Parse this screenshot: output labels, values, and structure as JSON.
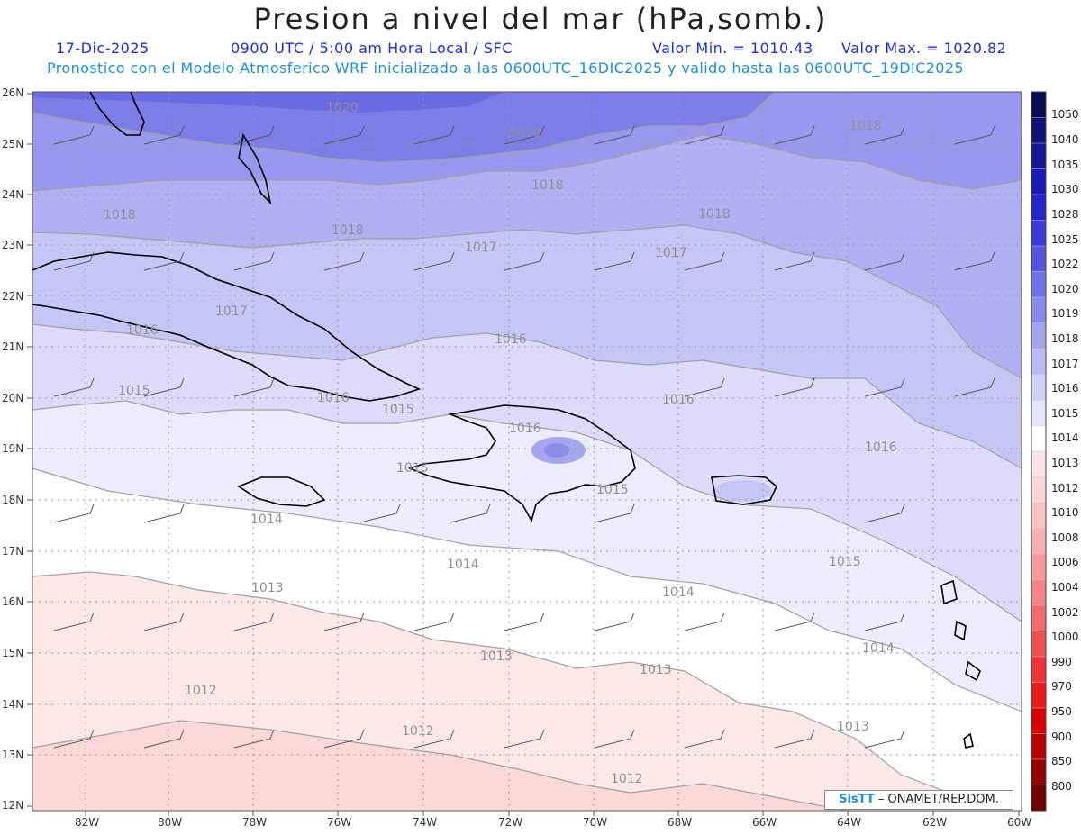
{
  "title": "Presion a nivel del mar (hPa,somb.)",
  "header": {
    "date": "17-Dic-2025",
    "time": "0900 UTC / 5:00 am Hora Local / SFC",
    "min": "Valor Min. = 1010.43",
    "max": "Valor Max. = 1020.82",
    "model": "Pronostico con el Modelo Atmosferico WRF inicializado a las 0600UTC_16DIC2025 y valido hasta las  0600UTC_19DIC2025"
  },
  "lat_labels": [
    "26N",
    "25N",
    "24N",
    "23N",
    "22N",
    "21N",
    "20N",
    "19N",
    "18N",
    "17N",
    "16N",
    "15N",
    "14N",
    "13N",
    "12N"
  ],
  "lon_labels": [
    "82W",
    "80W",
    "78W",
    "76W",
    "74W",
    "72W",
    "70W",
    "68W",
    "66W",
    "64W",
    "62W",
    "60W"
  ],
  "legend": [
    "1050",
    "1040",
    "1035",
    "1030",
    "1028",
    "1025",
    "1022",
    "1020",
    "1019",
    "1018",
    "1017",
    "1016",
    "1015",
    "1014",
    "1013",
    "1012",
    "1010",
    "1008",
    "1006",
    "1004",
    "1002",
    "1000",
    "990",
    "970",
    "950",
    "900",
    "850",
    "800"
  ],
  "legend_colors": [
    "#0a0a55",
    "#101075",
    "#151595",
    "#1a1ab5",
    "#2525cc",
    "#3a3ad8",
    "#5555e0",
    "#6f6fe6",
    "#8a8aec",
    "#a3a3f0",
    "#babaf4",
    "#d0d0f8",
    "#e4e4fb",
    "#ffffff",
    "#fde5e5",
    "#fcd6d6",
    "#fbc4c4",
    "#f9b0b0",
    "#f79a9a",
    "#f58484",
    "#f36c6c",
    "#f05050",
    "#ee3535",
    "#ea1a1a",
    "#d80000",
    "#b80000",
    "#950000",
    "#700000"
  ],
  "contour_labels": [
    "1020",
    "1019",
    "1018",
    "1018",
    "1018",
    "1018",
    "1018",
    "1017",
    "1017",
    "1017",
    "1016",
    "1016",
    "1016",
    "1016",
    "1016",
    "1016",
    "1015",
    "1015",
    "1015",
    "1015",
    "1015",
    "1014",
    "1014",
    "1014",
    "1014",
    "1013",
    "1013",
    "1013",
    "1013",
    "1012",
    "1012",
    "1012"
  ],
  "credit": {
    "brand": "SisTT",
    "org": "– ONAMET/REP.DOM."
  }
}
